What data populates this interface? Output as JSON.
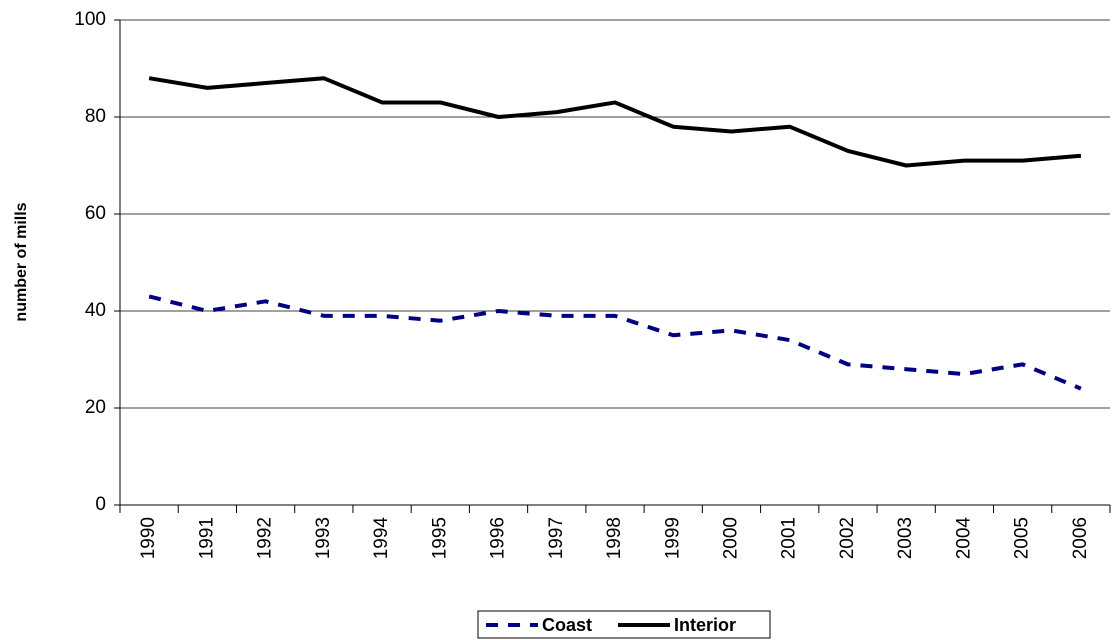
{
  "chart_data": {
    "type": "line",
    "y_label": "number of mills",
    "categories": [
      "1990",
      "1991",
      "1992",
      "1993",
      "1994",
      "1995",
      "1996",
      "1997",
      "1998",
      "1999",
      "2000",
      "2001",
      "2002",
      "2003",
      "2004",
      "2005",
      "2006"
    ],
    "series": [
      {
        "name": "Coast",
        "color": "#000080",
        "dashed": true,
        "values": [
          43,
          40,
          42,
          39,
          39,
          38,
          40,
          39,
          39,
          35,
          36,
          34,
          29,
          28,
          27,
          29,
          24
        ]
      },
      {
        "name": "Interior",
        "color": "#000000",
        "dashed": false,
        "values": [
          88,
          86,
          87,
          88,
          83,
          83,
          80,
          81,
          83,
          78,
          77,
          78,
          73,
          70,
          71,
          71,
          72
        ]
      }
    ],
    "ylim": [
      0,
      100
    ],
    "yticks": [
      0,
      20,
      40,
      60,
      80,
      100
    ],
    "grid": true,
    "legend": "bottom"
  }
}
